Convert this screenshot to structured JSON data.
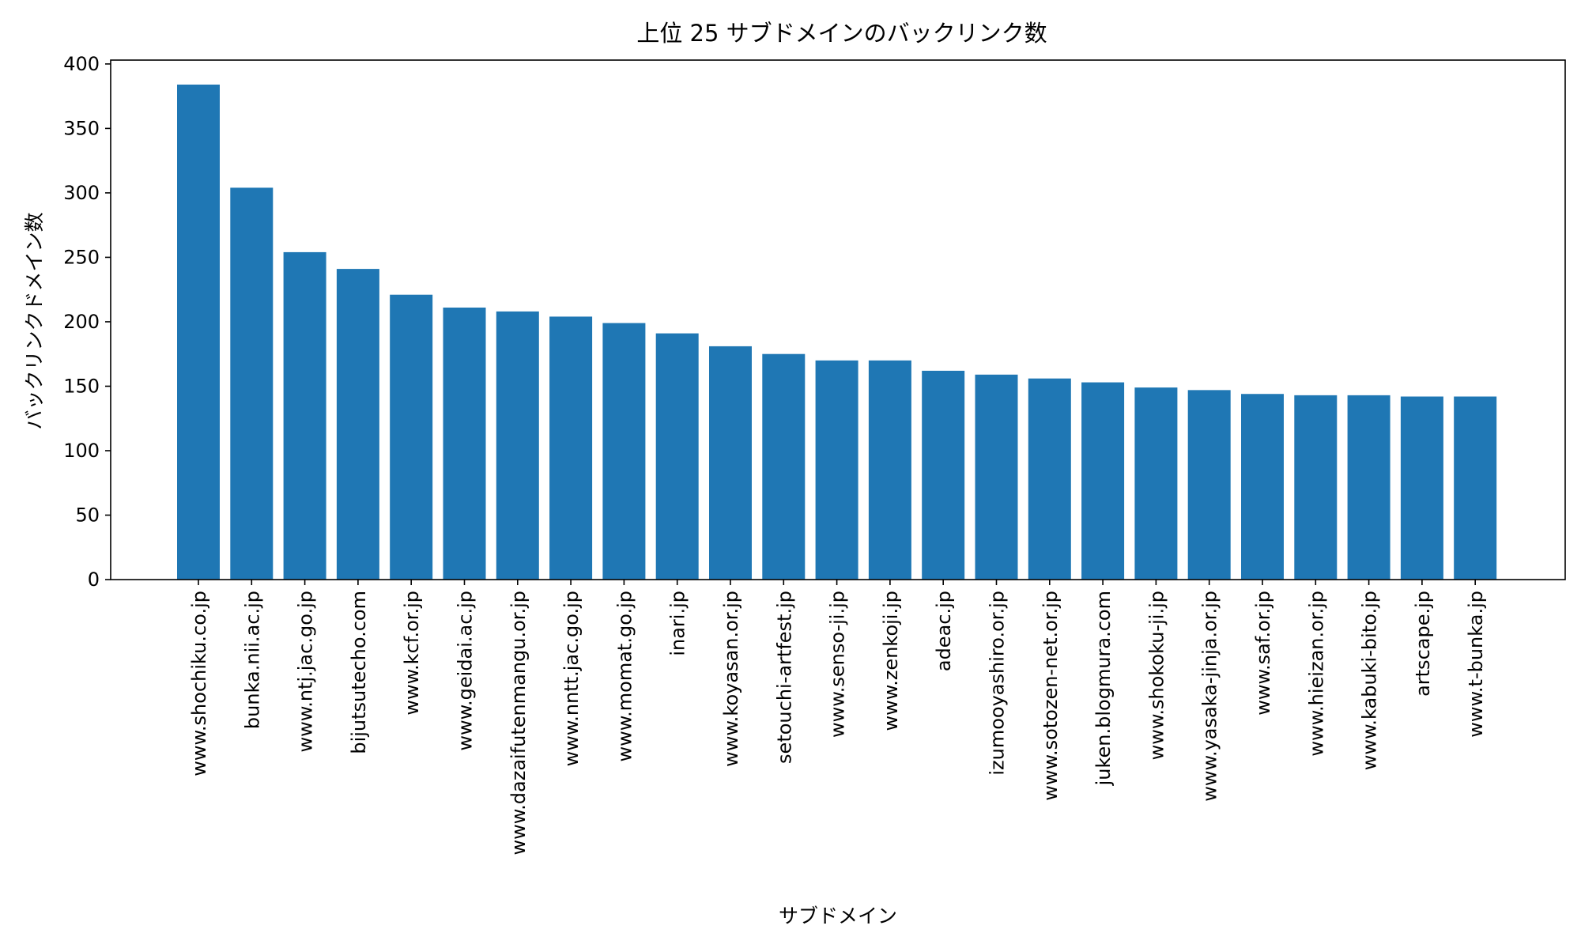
{
  "chart_data": {
    "type": "bar",
    "title": "上位 25 サブドメインのバックリンク数",
    "xlabel": "サブドメイン",
    "ylabel": "バックリンクドメイン数",
    "ylim": [
      0,
      403
    ],
    "yticks": [
      0,
      50,
      100,
      150,
      200,
      250,
      300,
      350,
      400
    ],
    "grid": false,
    "bar_color": "#1f77b4",
    "categories": [
      "www.shochiku.co.jp",
      "bunka.nii.ac.jp",
      "www.ntj.jac.go.jp",
      "bijutsutecho.com",
      "www.kcf.or.jp",
      "www.geidai.ac.jp",
      "www.dazaifutenmangu.or.jp",
      "www.nntt.jac.go.jp",
      "www.momat.go.jp",
      "inari.jp",
      "www.koyasan.or.jp",
      "setouchi-artfest.jp",
      "www.senso-ji.jp",
      "www.zenkoji.jp",
      "adeac.jp",
      "izumooyashiro.or.jp",
      "www.sotozen-net.or.jp",
      "juken.blogmura.com",
      "www.shokoku-ji.jp",
      "www.yasaka-jinja.or.jp",
      "www.saf.or.jp",
      "www.hieizan.or.jp",
      "www.kabuki-bito.jp",
      "artscape.jp",
      "www.t-bunka.jp"
    ],
    "values": [
      384,
      304,
      254,
      241,
      221,
      211,
      208,
      204,
      199,
      191,
      181,
      175,
      170,
      170,
      162,
      159,
      156,
      153,
      149,
      147,
      144,
      143,
      143,
      142,
      142
    ]
  }
}
